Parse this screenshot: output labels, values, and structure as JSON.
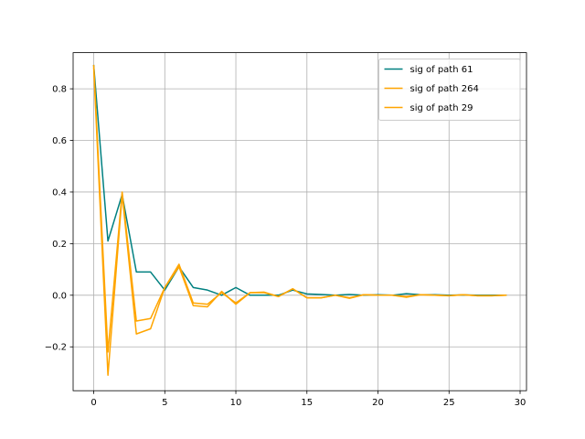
{
  "chart_data": {
    "type": "line",
    "title": "",
    "xlabel": "",
    "ylabel": "",
    "xlim": [
      -1.45,
      30.45
    ],
    "ylim": [
      -0.37,
      0.94
    ],
    "xticks": [
      0,
      5,
      10,
      15,
      20,
      25,
      30
    ],
    "xtick_labels": [
      "0",
      "5",
      "10",
      "15",
      "20",
      "25",
      "30"
    ],
    "yticks": [
      -0.2,
      0.0,
      0.2,
      0.4,
      0.6,
      0.8
    ],
    "ytick_labels": [
      "−0.2",
      "0.0",
      "0.2",
      "0.4",
      "0.6",
      "0.8"
    ],
    "grid": true,
    "legend_position": "top-right",
    "x": [
      0,
      1,
      2,
      3,
      4,
      5,
      6,
      7,
      8,
      9,
      10,
      11,
      12,
      13,
      14,
      15,
      16,
      17,
      18,
      19,
      20,
      21,
      22,
      23,
      24,
      25,
      26,
      27,
      28,
      29
    ],
    "series": [
      {
        "name": "sig of path 61",
        "color": "#008080",
        "values": [
          0.89,
          0.21,
          0.39,
          0.09,
          0.09,
          0.02,
          0.11,
          0.03,
          0.02,
          0.0,
          0.03,
          0.0,
          0.0,
          0.0,
          0.02,
          0.005,
          0.003,
          0.0,
          0.003,
          0.0,
          0.002,
          0.0,
          0.006,
          0.002,
          0.002,
          0.0,
          0.001,
          0.0,
          0.0,
          0.0
        ]
      },
      {
        "name": "sig of path 264",
        "color": "#ffa500",
        "values": [
          0.88,
          -0.31,
          0.39,
          -0.15,
          -0.13,
          0.03,
          0.12,
          -0.03,
          -0.035,
          0.01,
          -0.03,
          0.01,
          0.012,
          -0.005,
          0.025,
          -0.01,
          -0.01,
          0.0,
          -0.012,
          0.002,
          0.0,
          0.0,
          -0.008,
          0.002,
          0.0,
          -0.002,
          0.002,
          -0.002,
          -0.002,
          0.0
        ]
      },
      {
        "name": "sig of path 29",
        "color": "#ffa500",
        "values": [
          0.89,
          -0.22,
          0.4,
          -0.1,
          -0.09,
          0.03,
          0.11,
          -0.04,
          -0.045,
          0.015,
          -0.035,
          0.01,
          0.01,
          -0.005,
          0.025,
          -0.01,
          -0.01,
          0.0,
          -0.01,
          0.002,
          0.0,
          0.0,
          -0.005,
          0.002,
          0.0,
          -0.002,
          0.002,
          -0.002,
          -0.002,
          0.0
        ]
      }
    ]
  }
}
